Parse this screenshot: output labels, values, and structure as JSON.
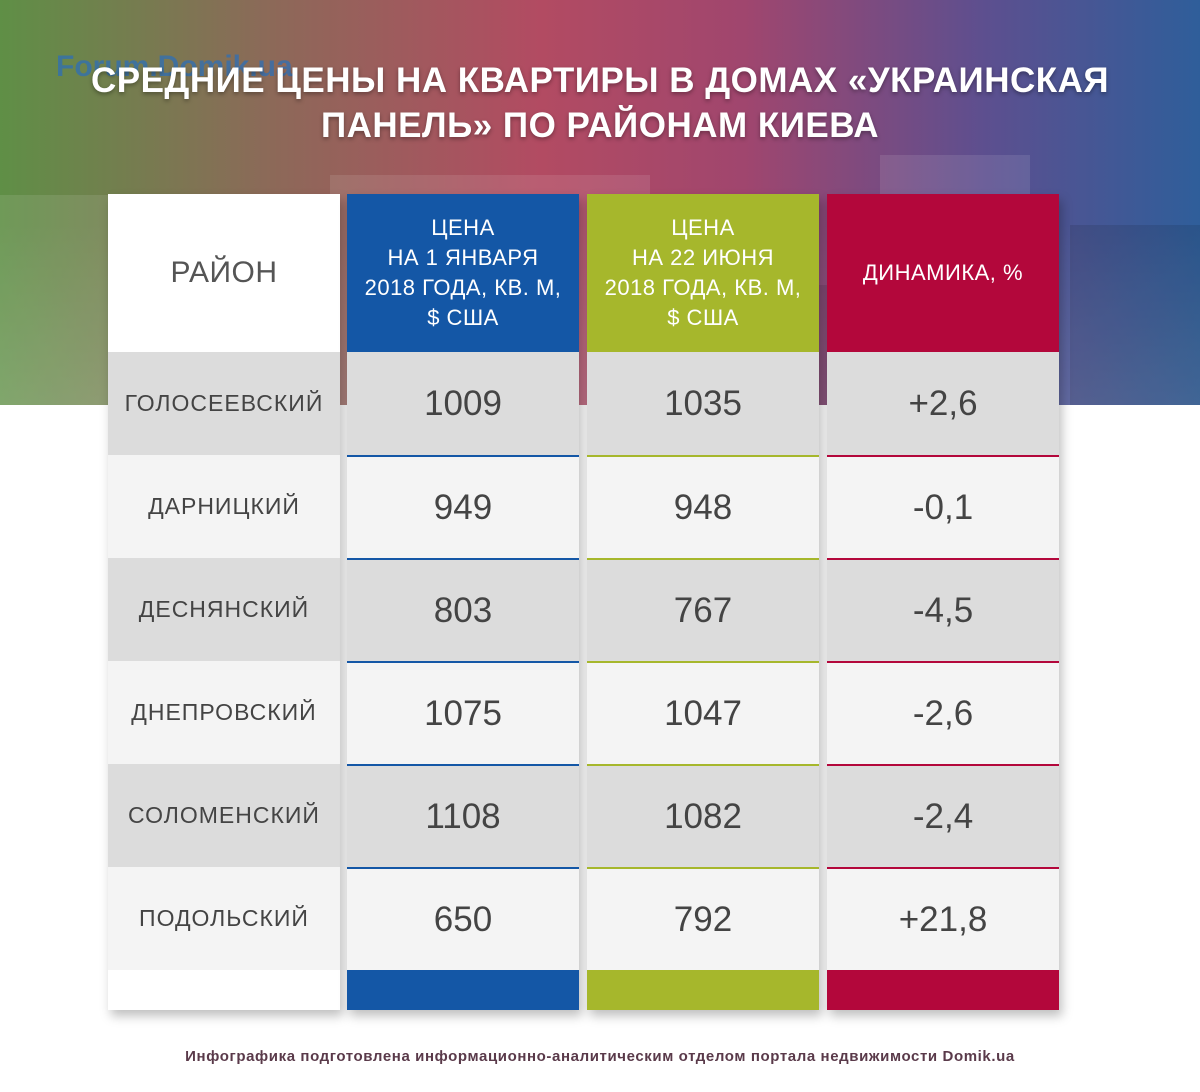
{
  "watermark": "Forum.Domik.ua",
  "title_line1": "СРЕДНИЕ ЦЕНЫ НА КВАРТИРЫ В ДОМАХ «УКРАИНСКАЯ",
  "title_line2": "ПАНЕЛЬ» ПО РАЙОНАМ КИЕВА",
  "footer": "Инфографика подготовлена информационно-аналитическим отделом портала недвижимости Domik.ua",
  "colors": {
    "jan": "#1457a6",
    "jun": "#a6b72c",
    "dyn": "#b3073b"
  },
  "chart_data": {
    "type": "table",
    "columns": [
      "РАЙОН",
      "ЦЕНА\nНА 1 ЯНВАРЯ\n2018 ГОДА, КВ. М,\n$ США",
      "ЦЕНА\nНА 22 ИЮНЯ\n2018 ГОДА, КВ. М,\n$ США",
      "ДИНАМИКА, %"
    ],
    "column_lines": [
      [
        "РАЙОН"
      ],
      [
        "ЦЕНА",
        "НА 1 ЯНВАРЯ",
        "2018 ГОДА, КВ. М,",
        "$ США"
      ],
      [
        "ЦЕНА",
        "НА 22 ИЮНЯ",
        "2018 ГОДА, КВ. М,",
        "$ США"
      ],
      [
        "ДИНАМИКА, %"
      ]
    ],
    "rows": [
      {
        "district": "ГОЛОСЕЕВСКИЙ",
        "jan": "1009",
        "jun": "1035",
        "dyn": "+2,6"
      },
      {
        "district": "ДАРНИЦКИЙ",
        "jan": "949",
        "jun": "948",
        "dyn": "-0,1"
      },
      {
        "district": "ДЕСНЯНСКИЙ",
        "jan": "803",
        "jun": "767",
        "dyn": "-4,5"
      },
      {
        "district": "ДНЕПРОВСКИЙ",
        "jan": "1075",
        "jun": "1047",
        "dyn": "-2,6"
      },
      {
        "district": "СОЛОМЕНСКИЙ",
        "jan": "1108",
        "jun": "1082",
        "dyn": "-2,4"
      },
      {
        "district": "ПОДОЛЬСКИЙ",
        "jan": "650",
        "jun": "792",
        "dyn": "+21,8"
      }
    ]
  }
}
